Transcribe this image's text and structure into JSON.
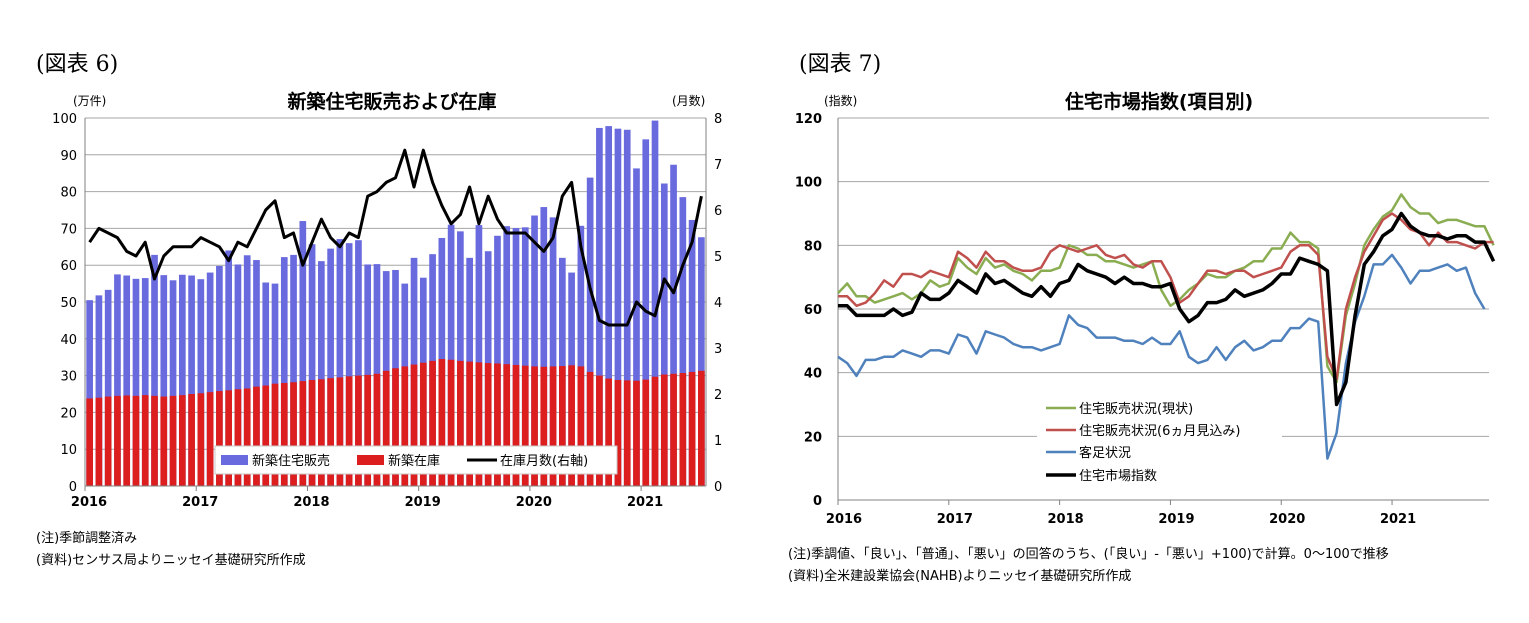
{
  "left_panel": {
    "figure_label": "(図表 6)",
    "note1": "(注)季節調整済み",
    "note2": "(資料)センサス局よりニッセイ基礎研究所作成"
  },
  "right_panel": {
    "figure_label": "(図表 7)",
    "note1": "(注)季調値、「良い」、「普通」、「悪い」の回答のうち、(「良い」-「悪い」+100)で計算。0〜100で推移",
    "note2": "(資料)全米建設業協会(NAHB)よりニッセイ基礎研究所作成"
  },
  "chart_data": [
    {
      "type": "bar",
      "title": "新築住宅販売および在庫",
      "ylabel": "(万件)",
      "y2label": "(月数)",
      "ylim": [
        0,
        100
      ],
      "y2lim": [
        0,
        8
      ],
      "yticks": [
        "0",
        "10",
        "20",
        "30",
        "40",
        "50",
        "60",
        "70",
        "80",
        "90",
        "100"
      ],
      "y2ticks": [
        "0",
        "1",
        "2",
        "3",
        "4",
        "5",
        "6",
        "7",
        "8"
      ],
      "xticks": [
        "2016",
        "2017",
        "2018",
        "2019",
        "2020",
        "2021"
      ],
      "legend_position": "bottom-right",
      "grid": true,
      "colors": {
        "sales": "#6a6adf",
        "inventory": "#dd1e1e",
        "months": "#000000"
      },
      "series": [
        {
          "name": "新築住宅販売",
          "kind": "bar",
          "values": [
            50.5,
            51.8,
            53.3,
            57.5,
            57.2,
            56.3,
            56.5,
            62.8,
            57.3,
            55.9,
            57.4,
            57.2,
            56.2,
            58.0,
            59.8,
            64.0,
            60.2,
            62.7,
            61.4,
            55.3,
            55.0,
            62.2,
            62.8,
            72.0,
            65.7,
            61.1,
            64.5,
            67.1,
            66.0,
            66.8,
            60.2,
            60.3,
            58.4,
            58.7,
            55.0,
            62.0,
            56.6,
            63.0,
            67.4,
            71.0,
            69.2,
            62.0,
            70.9,
            63.8,
            68.0,
            70.6,
            70.1,
            70.3,
            73.5,
            75.8,
            73.0,
            62.0,
            58.0,
            70.7,
            83.8,
            97.3,
            97.8,
            97.1,
            96.8,
            86.3,
            94.2,
            99.3,
            82.2,
            87.3,
            78.5,
            72.3,
            67.6
          ]
        },
        {
          "name": "新築在庫",
          "kind": "bar",
          "values": [
            23.8,
            24.0,
            24.3,
            24.5,
            24.6,
            24.5,
            24.7,
            24.5,
            24.3,
            24.5,
            24.7,
            25.0,
            25.2,
            25.5,
            25.8,
            26.0,
            26.3,
            26.5,
            27.0,
            27.3,
            27.8,
            28.0,
            28.2,
            28.5,
            28.8,
            29.0,
            29.3,
            29.5,
            29.8,
            30.0,
            30.2,
            30.5,
            31.3,
            32.0,
            32.5,
            33.0,
            33.5,
            34.0,
            34.5,
            34.3,
            34.0,
            33.8,
            33.6,
            33.4,
            33.3,
            33.1,
            32.9,
            32.7,
            32.5,
            32.4,
            32.5,
            32.6,
            32.8,
            32.5,
            31.0,
            30.0,
            29.2,
            28.8,
            28.7,
            28.6,
            28.9,
            29.7,
            30.3,
            30.5,
            30.7,
            31.0,
            31.3,
            32.5,
            35.3
          ]
        },
        {
          "name": "在庫月数(右軸)",
          "kind": "line",
          "axis": "right",
          "values": [
            5.3,
            5.6,
            5.5,
            5.4,
            5.1,
            5.0,
            5.3,
            4.5,
            5.0,
            5.2,
            5.2,
            5.2,
            5.4,
            5.3,
            5.2,
            4.9,
            5.3,
            5.2,
            5.6,
            6.0,
            6.2,
            5.4,
            5.5,
            4.8,
            5.3,
            5.8,
            5.4,
            5.2,
            5.5,
            5.4,
            6.3,
            6.4,
            6.6,
            6.7,
            7.3,
            6.5,
            7.3,
            6.6,
            6.1,
            5.7,
            5.9,
            6.5,
            5.7,
            6.3,
            5.8,
            5.5,
            5.5,
            5.5,
            5.3,
            5.1,
            5.4,
            6.3,
            6.6,
            5.2,
            4.3,
            3.6,
            3.5,
            3.5,
            3.5,
            4.0,
            3.8,
            3.7,
            4.5,
            4.2,
            4.8,
            5.3,
            6.3
          ]
        }
      ]
    },
    {
      "type": "line",
      "title": "住宅市場指数(項目別)",
      "ylabel": "(指数)",
      "ylim": [
        0,
        120
      ],
      "yticks": [
        "0",
        "20",
        "40",
        "60",
        "80",
        "100",
        "120"
      ],
      "xticks": [
        "2016",
        "2017",
        "2018",
        "2019",
        "2020",
        "2021"
      ],
      "legend_position": "bottom-center",
      "grid": true,
      "series": [
        {
          "name": "住宅販売状況(現状)",
          "color": "#8aad52",
          "values": [
            65,
            68,
            64,
            64,
            62,
            63,
            64,
            65,
            63,
            65,
            69,
            67,
            68,
            76,
            73,
            71,
            76,
            73,
            74,
            72,
            71,
            69,
            72,
            72,
            73,
            80,
            79,
            77,
            77,
            75,
            75,
            74,
            73,
            74,
            75,
            66,
            61,
            63,
            66,
            68,
            71,
            70,
            70,
            72,
            73,
            75,
            75,
            79,
            79,
            84,
            81,
            81,
            79,
            42,
            37,
            58,
            68,
            80,
            85,
            89,
            91,
            96,
            92,
            90,
            90,
            87,
            88,
            88,
            87,
            86,
            86,
            80
          ]
        },
        {
          "name": "住宅販売状況(6ヵ月見込み)",
          "color": "#c0504d",
          "values": [
            64,
            64,
            61,
            62,
            65,
            69,
            67,
            71,
            71,
            70,
            72,
            71,
            70,
            78,
            76,
            73,
            78,
            75,
            75,
            73,
            72,
            72,
            73,
            78,
            80,
            79,
            78,
            79,
            80,
            77,
            76,
            77,
            74,
            73,
            75,
            75,
            70,
            62,
            64,
            68,
            72,
            72,
            71,
            72,
            72,
            70,
            71,
            72,
            73,
            78,
            80,
            80,
            77,
            45,
            38,
            60,
            70,
            78,
            83,
            88,
            90,
            88,
            85,
            84,
            80,
            84,
            81,
            81,
            80,
            79,
            81,
            81
          ]
        },
        {
          "name": "客足状況",
          "color": "#4f81bd",
          "values": [
            45,
            43,
            39,
            44,
            44,
            45,
            45,
            47,
            46,
            45,
            47,
            47,
            46,
            52,
            51,
            46,
            53,
            52,
            51,
            49,
            48,
            48,
            47,
            48,
            49,
            58,
            55,
            54,
            51,
            51,
            51,
            50,
            50,
            49,
            51,
            49,
            49,
            53,
            45,
            43,
            44,
            48,
            44,
            48,
            50,
            47,
            48,
            50,
            50,
            54,
            54,
            57,
            56,
            13,
            21,
            43,
            56,
            64,
            74,
            74,
            77,
            73,
            68,
            72,
            72,
            73,
            74,
            72,
            73,
            65,
            60
          ]
        },
        {
          "name": "住宅市場指数",
          "color": "#000000",
          "values": [
            61,
            61,
            58,
            58,
            58,
            58,
            60,
            58,
            59,
            65,
            63,
            63,
            65,
            69,
            67,
            65,
            71,
            68,
            69,
            67,
            65,
            64,
            67,
            64,
            68,
            69,
            74,
            72,
            71,
            70,
            68,
            70,
            68,
            68,
            67,
            67,
            68,
            60,
            56,
            58,
            62,
            62,
            63,
            66,
            64,
            65,
            66,
            68,
            71,
            71,
            76,
            75,
            74,
            72,
            30,
            37,
            58,
            74,
            78,
            83,
            85,
            90,
            86,
            84,
            83,
            83,
            82,
            83,
            83,
            81,
            81,
            75
          ]
        }
      ]
    }
  ]
}
